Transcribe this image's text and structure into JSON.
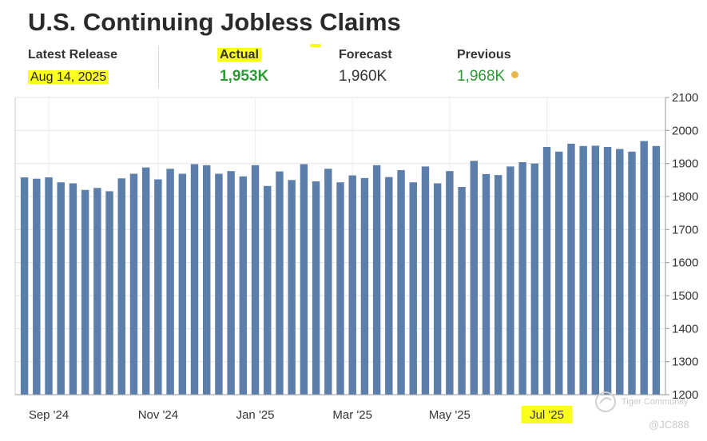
{
  "header": {
    "title": "U.S. Continuing Jobless Claims"
  },
  "stats": {
    "latest_release_label": "Latest Release",
    "latest_release_value": "Aug 14, 2025",
    "actual_label": "Actual",
    "actual_value": "1,953K",
    "forecast_label": "Forecast",
    "forecast_value": "1,960K",
    "previous_label": "Previous",
    "previous_value": "1,968K"
  },
  "colors": {
    "bar": "#5b7faa",
    "positive": "#2e9a36",
    "highlight": "#fbff1e",
    "dot": "#e8b84a"
  },
  "watermark": {
    "brand": "Tiger Community",
    "user": "@JC888"
  },
  "chart_data": {
    "type": "bar",
    "x_tick_labels": [
      "Sep '24",
      "Nov '24",
      "Jan '25",
      "Mar '25",
      "May '25",
      "Jul '25"
    ],
    "x_tick_bar_index": [
      2,
      11,
      19,
      27,
      35,
      43
    ],
    "y_ticks": [
      1200,
      1300,
      1400,
      1500,
      1600,
      1700,
      1800,
      1900,
      2000,
      2100
    ],
    "ylim": [
      1200,
      2100
    ],
    "y_axis_side": "right",
    "grid": true,
    "series": [
      {
        "values": [
          1858,
          1854,
          1858,
          1843,
          1840,
          1820,
          1826,
          1816,
          1855,
          1869,
          1888,
          1852,
          1884,
          1869,
          1898,
          1895,
          1869,
          1877,
          1861,
          1895,
          1832,
          1876,
          1850,
          1898,
          1846,
          1884,
          1843,
          1864,
          1856,
          1895,
          1859,
          1880,
          1843,
          1891,
          1840,
          1877,
          1829,
          1908,
          1868,
          1865,
          1891,
          1904,
          1900,
          1950,
          1936,
          1960,
          1953,
          1954,
          1950,
          1944,
          1936,
          1968,
          1953
        ]
      }
    ]
  }
}
